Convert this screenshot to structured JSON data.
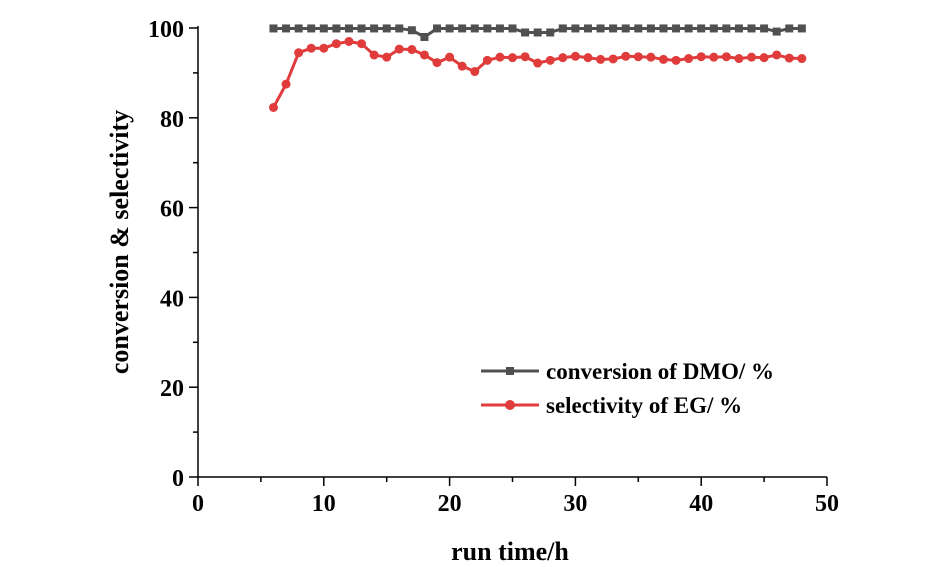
{
  "chart_data": {
    "type": "line",
    "title": "",
    "xlabel": "run time/h",
    "ylabel": "conversion & selectivity",
    "xlim": [
      0,
      50
    ],
    "ylim": [
      0,
      100
    ],
    "x_ticks": [
      "0",
      "10",
      "20",
      "30",
      "40",
      "50"
    ],
    "y_ticks": [
      "0",
      "20",
      "40",
      "60",
      "80",
      "100"
    ],
    "legend_position": "lower-right",
    "series": [
      {
        "name": "conversion of DMO/ %",
        "color": "#505050",
        "marker": "square",
        "x": [
          6,
          7,
          8,
          9,
          10,
          11,
          12,
          13,
          14,
          15,
          16,
          17,
          18,
          19,
          20,
          21,
          22,
          23,
          24,
          25,
          26,
          27,
          28,
          29,
          30,
          31,
          32,
          33,
          34,
          35,
          36,
          37,
          38,
          39,
          40,
          41,
          42,
          43,
          44,
          45,
          46,
          47,
          48
        ],
        "values": [
          99.9,
          99.9,
          99.9,
          99.9,
          99.9,
          99.9,
          99.9,
          99.9,
          99.9,
          99.9,
          99.9,
          99.5,
          98.0,
          99.9,
          99.9,
          99.9,
          99.9,
          99.9,
          99.9,
          99.9,
          99.0,
          99.0,
          99.0,
          99.9,
          99.9,
          99.9,
          99.9,
          99.9,
          99.9,
          99.9,
          99.9,
          99.9,
          99.9,
          99.9,
          99.9,
          99.9,
          99.9,
          99.9,
          99.9,
          99.9,
          99.2,
          99.9,
          99.9
        ]
      },
      {
        "name": "selectivity of EG/ %",
        "color": "#e03c3c",
        "marker": "circle",
        "x": [
          6,
          7,
          8,
          9,
          10,
          11,
          12,
          13,
          14,
          15,
          16,
          17,
          18,
          19,
          20,
          21,
          22,
          23,
          24,
          25,
          26,
          27,
          28,
          29,
          30,
          31,
          32,
          33,
          34,
          35,
          36,
          37,
          38,
          39,
          40,
          41,
          42,
          43,
          44,
          45,
          46,
          47,
          48
        ],
        "values": [
          82.3,
          87.5,
          94.5,
          95.5,
          95.5,
          96.5,
          97.0,
          96.5,
          94.0,
          93.5,
          95.3,
          95.2,
          94.0,
          92.3,
          93.5,
          91.5,
          90.3,
          92.8,
          93.5,
          93.4,
          93.6,
          92.2,
          92.8,
          93.4,
          93.7,
          93.4,
          93.0,
          93.1,
          93.7,
          93.6,
          93.5,
          93.0,
          92.8,
          93.2,
          93.6,
          93.5,
          93.6,
          93.2,
          93.5,
          93.4,
          94.0,
          93.3,
          93.2
        ]
      }
    ]
  }
}
